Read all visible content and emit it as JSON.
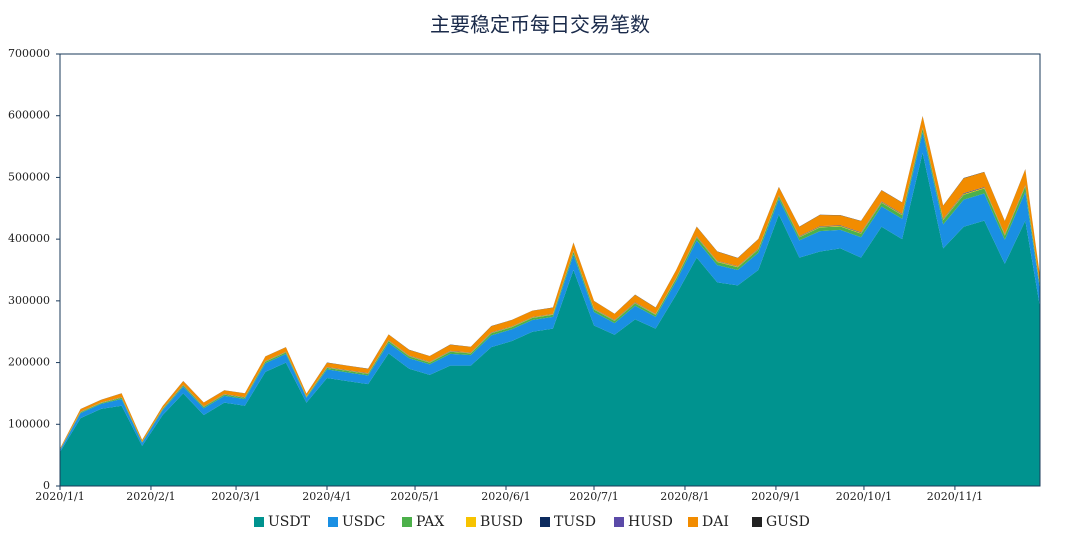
{
  "chart_data": {
    "type": "stacked_area",
    "title": "主要稳定币每日交易笔数",
    "x": [
      "2020/1/1",
      "2020/1/8",
      "2020/1/15",
      "2020/1/22",
      "2020/1/29",
      "2020/2/5",
      "2020/2/12",
      "2020/2/19",
      "2020/2/26",
      "2020/3/4",
      "2020/3/11",
      "2020/3/18",
      "2020/3/25",
      "2020/4/1",
      "2020/4/8",
      "2020/4/15",
      "2020/4/22",
      "2020/4/29",
      "2020/5/6",
      "2020/5/13",
      "2020/5/20",
      "2020/5/27",
      "2020/6/3",
      "2020/6/10",
      "2020/6/17",
      "2020/6/24",
      "2020/7/1",
      "2020/7/8",
      "2020/7/15",
      "2020/7/22",
      "2020/7/29",
      "2020/8/5",
      "2020/8/12",
      "2020/8/19",
      "2020/8/26",
      "2020/9/2",
      "2020/9/9",
      "2020/9/16",
      "2020/9/23",
      "2020/9/30",
      "2020/10/7",
      "2020/10/14",
      "2020/10/21",
      "2020/10/28",
      "2020/11/4",
      "2020/11/11",
      "2020/11/18",
      "2020/11/25",
      "2020/11/30"
    ],
    "xlim": [
      "2020/1/1",
      "2020/11/30"
    ],
    "xticks": [
      "2020/1/1",
      "2020/2/1",
      "2020/3/1",
      "2020/4/1",
      "2020/5/1",
      "2020/6/1",
      "2020/7/1",
      "2020/8/1",
      "2020/9/1",
      "2020/10/1",
      "2020/11/1"
    ],
    "ylim": [
      0,
      700000
    ],
    "yticks": [
      0,
      100000,
      200000,
      300000,
      400000,
      500000,
      600000,
      700000
    ],
    "legend": "bottom",
    "series": [
      {
        "name": "USDT",
        "color": "#00938f",
        "values": [
          55000,
          110000,
          125000,
          130000,
          65000,
          115000,
          150000,
          115000,
          135000,
          130000,
          185000,
          200000,
          135000,
          175000,
          170000,
          165000,
          215000,
          190000,
          180000,
          195000,
          195000,
          225000,
          235000,
          250000,
          255000,
          350000,
          260000,
          245000,
          270000,
          255000,
          310000,
          370000,
          330000,
          325000,
          350000,
          440000,
          370000,
          380000,
          385000,
          370000,
          420000,
          400000,
          540000,
          385000,
          420000,
          430000,
          360000,
          430000,
          290000
        ]
      },
      {
        "name": "USDC",
        "color": "#1a8fe3",
        "values": [
          3000,
          8000,
          8000,
          11000,
          5000,
          8000,
          11000,
          11000,
          11000,
          11000,
          14000,
          14000,
          8000,
          14000,
          14000,
          14000,
          17000,
          17000,
          17000,
          19000,
          17000,
          19000,
          19000,
          19000,
          19000,
          25000,
          22000,
          19000,
          22000,
          19000,
          22000,
          28000,
          28000,
          25000,
          28000,
          25000,
          28000,
          33000,
          30000,
          33000,
          33000,
          33000,
          33000,
          39000,
          44000,
          44000,
          39000,
          47000,
          28000
        ]
      },
      {
        "name": "PAX",
        "color": "#4cb04a",
        "values": [
          500,
          1500,
          1500,
          2000,
          1000,
          1500,
          2000,
          2000,
          2000,
          2000,
          2500,
          2500,
          1500,
          2500,
          2500,
          2500,
          3000,
          3000,
          3000,
          3500,
          3000,
          3500,
          3500,
          3500,
          3500,
          4500,
          4000,
          3500,
          4000,
          3500,
          4000,
          5000,
          5000,
          4500,
          5000,
          4500,
          5000,
          6000,
          5500,
          6000,
          6000,
          6000,
          6000,
          7000,
          8000,
          8000,
          7000,
          8500,
          5000
        ]
      },
      {
        "name": "BUSD",
        "color": "#f7c300",
        "values": [
          300,
          500,
          500,
          500,
          300,
          500,
          500,
          500,
          500,
          500,
          600,
          600,
          500,
          600,
          600,
          600,
          700,
          700,
          700,
          700,
          700,
          700,
          700,
          700,
          700,
          800,
          800,
          700,
          800,
          700,
          800,
          900,
          900,
          900,
          900,
          900,
          900,
          1000,
          1000,
          1000,
          1000,
          1000,
          1000,
          1100,
          1200,
          1200,
          1100,
          1200,
          900
        ]
      },
      {
        "name": "TUSD",
        "color": "#0c2a5e",
        "values": [
          200,
          300,
          300,
          300,
          200,
          300,
          300,
          300,
          300,
          300,
          400,
          400,
          300,
          400,
          400,
          400,
          400,
          400,
          400,
          400,
          400,
          400,
          400,
          400,
          400,
          500,
          500,
          400,
          500,
          400,
          500,
          500,
          500,
          500,
          500,
          500,
          500,
          600,
          600,
          600,
          600,
          600,
          600,
          600,
          700,
          700,
          600,
          700,
          500
        ]
      },
      {
        "name": "HUSD",
        "color": "#5b4aa8",
        "values": [
          100,
          200,
          200,
          200,
          100,
          200,
          200,
          200,
          200,
          200,
          300,
          300,
          200,
          300,
          300,
          300,
          300,
          300,
          300,
          300,
          300,
          300,
          300,
          300,
          300,
          400,
          400,
          300,
          400,
          300,
          400,
          400,
          400,
          400,
          400,
          400,
          400,
          500,
          500,
          500,
          500,
          500,
          500,
          500,
          600,
          600,
          500,
          600,
          400
        ]
      },
      {
        "name": "DAI",
        "color": "#f28c00",
        "values": [
          1500,
          4000,
          4000,
          6000,
          3000,
          4000,
          6000,
          6000,
          6000,
          6000,
          7000,
          7000,
          4000,
          7000,
          7000,
          7000,
          9000,
          9000,
          9000,
          10000,
          9000,
          10000,
          10000,
          10000,
          10000,
          13000,
          12000,
          10000,
          12000,
          10000,
          12000,
          15000,
          15000,
          13000,
          15000,
          13000,
          15000,
          18000,
          16000,
          18000,
          18000,
          18000,
          18000,
          21000,
          24000,
          24000,
          21000,
          25000,
          15000
        ]
      },
      {
        "name": "GUSD",
        "color": "#222222",
        "values": [
          100,
          200,
          200,
          200,
          100,
          200,
          200,
          200,
          200,
          200,
          300,
          300,
          200,
          300,
          300,
          300,
          300,
          300,
          300,
          300,
          300,
          300,
          300,
          300,
          300,
          300,
          300,
          300,
          300,
          300,
          300,
          400,
          400,
          400,
          400,
          400,
          400,
          400,
          400,
          400,
          400,
          400,
          400,
          400,
          500,
          500,
          400,
          500,
          300
        ]
      }
    ]
  }
}
